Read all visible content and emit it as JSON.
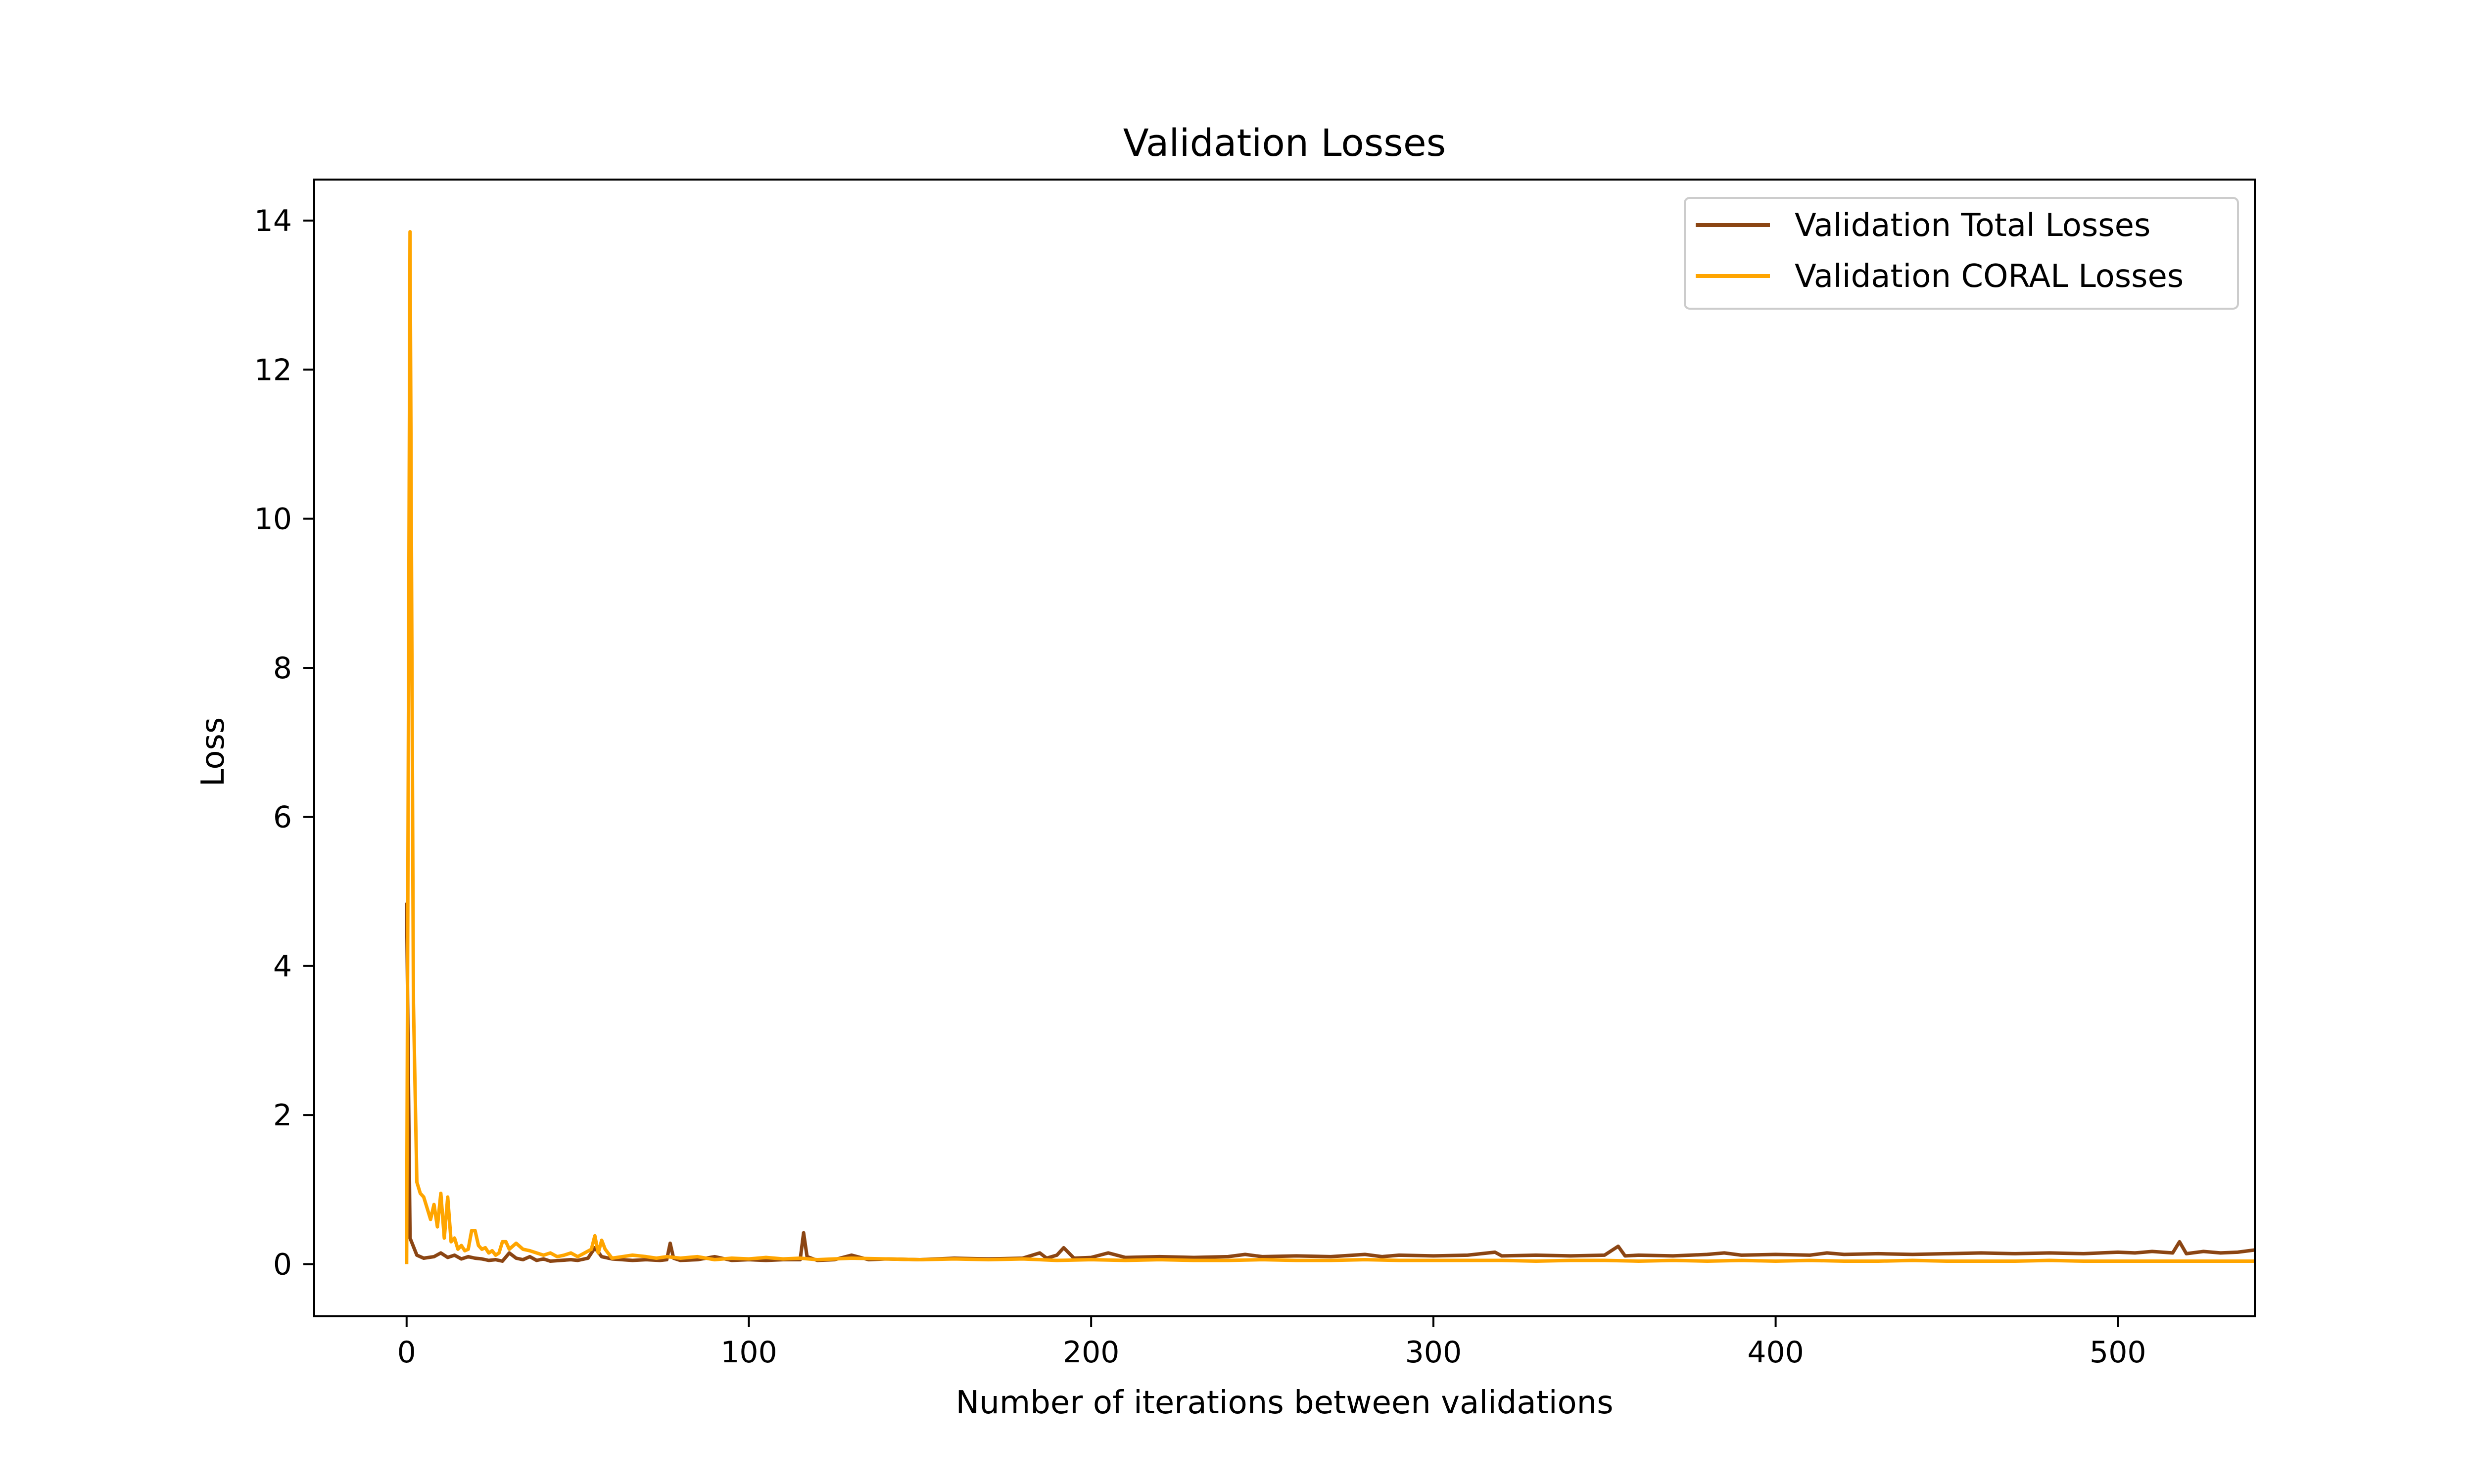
{
  "chart_data": {
    "type": "line",
    "title": "Validation Losses",
    "xlabel": "Number of iterations between validations",
    "ylabel": "Loss",
    "xlim": [
      -27,
      540
    ],
    "ylim": [
      -0.7,
      14.55
    ],
    "xticks": [
      0,
      100,
      200,
      300,
      400,
      500
    ],
    "yticks": [
      0,
      2,
      4,
      6,
      8,
      10,
      12,
      14
    ],
    "grid": false,
    "legend_position": "top-right",
    "series": [
      {
        "name": "Validation Total Losses",
        "color": "#8B4513",
        "points": [
          [
            0,
            4.85
          ],
          [
            1,
            0.35
          ],
          [
            3,
            0.12
          ],
          [
            5,
            0.08
          ],
          [
            8,
            0.1
          ],
          [
            10,
            0.15
          ],
          [
            12,
            0.09
          ],
          [
            14,
            0.12
          ],
          [
            16,
            0.07
          ],
          [
            18,
            0.1
          ],
          [
            20,
            0.08
          ],
          [
            22,
            0.07
          ],
          [
            24,
            0.05
          ],
          [
            26,
            0.06
          ],
          [
            28,
            0.04
          ],
          [
            30,
            0.15
          ],
          [
            32,
            0.08
          ],
          [
            34,
            0.06
          ],
          [
            36,
            0.1
          ],
          [
            38,
            0.05
          ],
          [
            40,
            0.07
          ],
          [
            42,
            0.04
          ],
          [
            45,
            0.05
          ],
          [
            48,
            0.06
          ],
          [
            50,
            0.05
          ],
          [
            53,
            0.08
          ],
          [
            55,
            0.22
          ],
          [
            57,
            0.1
          ],
          [
            60,
            0.07
          ],
          [
            63,
            0.06
          ],
          [
            66,
            0.05
          ],
          [
            70,
            0.06
          ],
          [
            74,
            0.05
          ],
          [
            76,
            0.06
          ],
          [
            77,
            0.28
          ],
          [
            78,
            0.08
          ],
          [
            80,
            0.05
          ],
          [
            85,
            0.06
          ],
          [
            90,
            0.1
          ],
          [
            95,
            0.05
          ],
          [
            100,
            0.06
          ],
          [
            105,
            0.05
          ],
          [
            110,
            0.06
          ],
          [
            115,
            0.06
          ],
          [
            116,
            0.42
          ],
          [
            117,
            0.1
          ],
          [
            120,
            0.05
          ],
          [
            125,
            0.06
          ],
          [
            130,
            0.12
          ],
          [
            135,
            0.06
          ],
          [
            140,
            0.07
          ],
          [
            150,
            0.06
          ],
          [
            160,
            0.08
          ],
          [
            170,
            0.07
          ],
          [
            180,
            0.08
          ],
          [
            185,
            0.15
          ],
          [
            187,
            0.08
          ],
          [
            190,
            0.12
          ],
          [
            192,
            0.22
          ],
          [
            195,
            0.08
          ],
          [
            200,
            0.09
          ],
          [
            205,
            0.15
          ],
          [
            210,
            0.09
          ],
          [
            220,
            0.1
          ],
          [
            230,
            0.09
          ],
          [
            240,
            0.1
          ],
          [
            245,
            0.13
          ],
          [
            250,
            0.1
          ],
          [
            260,
            0.11
          ],
          [
            270,
            0.1
          ],
          [
            280,
            0.13
          ],
          [
            285,
            0.1
          ],
          [
            290,
            0.12
          ],
          [
            300,
            0.11
          ],
          [
            310,
            0.12
          ],
          [
            318,
            0.16
          ],
          [
            320,
            0.11
          ],
          [
            330,
            0.12
          ],
          [
            340,
            0.11
          ],
          [
            350,
            0.12
          ],
          [
            354,
            0.24
          ],
          [
            356,
            0.11
          ],
          [
            360,
            0.12
          ],
          [
            370,
            0.11
          ],
          [
            380,
            0.13
          ],
          [
            385,
            0.15
          ],
          [
            390,
            0.12
          ],
          [
            400,
            0.13
          ],
          [
            410,
            0.12
          ],
          [
            415,
            0.15
          ],
          [
            420,
            0.13
          ],
          [
            430,
            0.14
          ],
          [
            440,
            0.13
          ],
          [
            450,
            0.14
          ],
          [
            460,
            0.15
          ],
          [
            470,
            0.14
          ],
          [
            480,
            0.15
          ],
          [
            490,
            0.14
          ],
          [
            500,
            0.16
          ],
          [
            505,
            0.15
          ],
          [
            510,
            0.17
          ],
          [
            516,
            0.15
          ],
          [
            518,
            0.3
          ],
          [
            520,
            0.14
          ],
          [
            525,
            0.17
          ],
          [
            530,
            0.15
          ],
          [
            535,
            0.16
          ],
          [
            540,
            0.19
          ]
        ]
      },
      {
        "name": "Validation CORAL Losses",
        "color": "#FFA500",
        "points": [
          [
            0,
            0.0
          ],
          [
            1,
            13.85
          ],
          [
            2,
            3.5
          ],
          [
            3,
            1.1
          ],
          [
            4,
            0.95
          ],
          [
            5,
            0.9
          ],
          [
            6,
            0.75
          ],
          [
            7,
            0.6
          ],
          [
            8,
            0.8
          ],
          [
            9,
            0.5
          ],
          [
            10,
            0.95
          ],
          [
            11,
            0.35
          ],
          [
            12,
            0.9
          ],
          [
            13,
            0.3
          ],
          [
            14,
            0.35
          ],
          [
            15,
            0.2
          ],
          [
            16,
            0.25
          ],
          [
            17,
            0.18
          ],
          [
            18,
            0.2
          ],
          [
            19,
            0.45
          ],
          [
            20,
            0.45
          ],
          [
            21,
            0.25
          ],
          [
            22,
            0.2
          ],
          [
            23,
            0.22
          ],
          [
            24,
            0.15
          ],
          [
            25,
            0.18
          ],
          [
            26,
            0.12
          ],
          [
            27,
            0.15
          ],
          [
            28,
            0.3
          ],
          [
            29,
            0.3
          ],
          [
            30,
            0.2
          ],
          [
            32,
            0.28
          ],
          [
            34,
            0.2
          ],
          [
            36,
            0.18
          ],
          [
            38,
            0.15
          ],
          [
            40,
            0.12
          ],
          [
            42,
            0.15
          ],
          [
            44,
            0.1
          ],
          [
            46,
            0.12
          ],
          [
            48,
            0.15
          ],
          [
            50,
            0.1
          ],
          [
            52,
            0.15
          ],
          [
            54,
            0.2
          ],
          [
            55,
            0.38
          ],
          [
            56,
            0.15
          ],
          [
            57,
            0.32
          ],
          [
            58,
            0.2
          ],
          [
            60,
            0.08
          ],
          [
            63,
            0.1
          ],
          [
            66,
            0.12
          ],
          [
            70,
            0.1
          ],
          [
            73,
            0.08
          ],
          [
            76,
            0.1
          ],
          [
            80,
            0.08
          ],
          [
            85,
            0.1
          ],
          [
            90,
            0.06
          ],
          [
            95,
            0.08
          ],
          [
            100,
            0.07
          ],
          [
            105,
            0.09
          ],
          [
            110,
            0.07
          ],
          [
            115,
            0.08
          ],
          [
            120,
            0.06
          ],
          [
            125,
            0.07
          ],
          [
            130,
            0.08
          ],
          [
            140,
            0.07
          ],
          [
            150,
            0.06
          ],
          [
            160,
            0.07
          ],
          [
            170,
            0.06
          ],
          [
            180,
            0.07
          ],
          [
            190,
            0.05
          ],
          [
            200,
            0.06
          ],
          [
            210,
            0.05
          ],
          [
            220,
            0.06
          ],
          [
            230,
            0.05
          ],
          [
            240,
            0.05
          ],
          [
            250,
            0.06
          ],
          [
            260,
            0.05
          ],
          [
            270,
            0.05
          ],
          [
            280,
            0.06
          ],
          [
            290,
            0.05
          ],
          [
            300,
            0.05
          ],
          [
            310,
            0.05
          ],
          [
            320,
            0.05
          ],
          [
            330,
            0.04
          ],
          [
            340,
            0.05
          ],
          [
            350,
            0.05
          ],
          [
            360,
            0.04
          ],
          [
            370,
            0.05
          ],
          [
            380,
            0.04
          ],
          [
            390,
            0.05
          ],
          [
            400,
            0.04
          ],
          [
            410,
            0.05
          ],
          [
            420,
            0.04
          ],
          [
            430,
            0.04
          ],
          [
            440,
            0.05
          ],
          [
            450,
            0.04
          ],
          [
            460,
            0.04
          ],
          [
            470,
            0.04
          ],
          [
            480,
            0.05
          ],
          [
            490,
            0.04
          ],
          [
            500,
            0.04
          ],
          [
            510,
            0.04
          ],
          [
            520,
            0.04
          ],
          [
            530,
            0.04
          ],
          [
            540,
            0.04
          ]
        ]
      }
    ]
  }
}
